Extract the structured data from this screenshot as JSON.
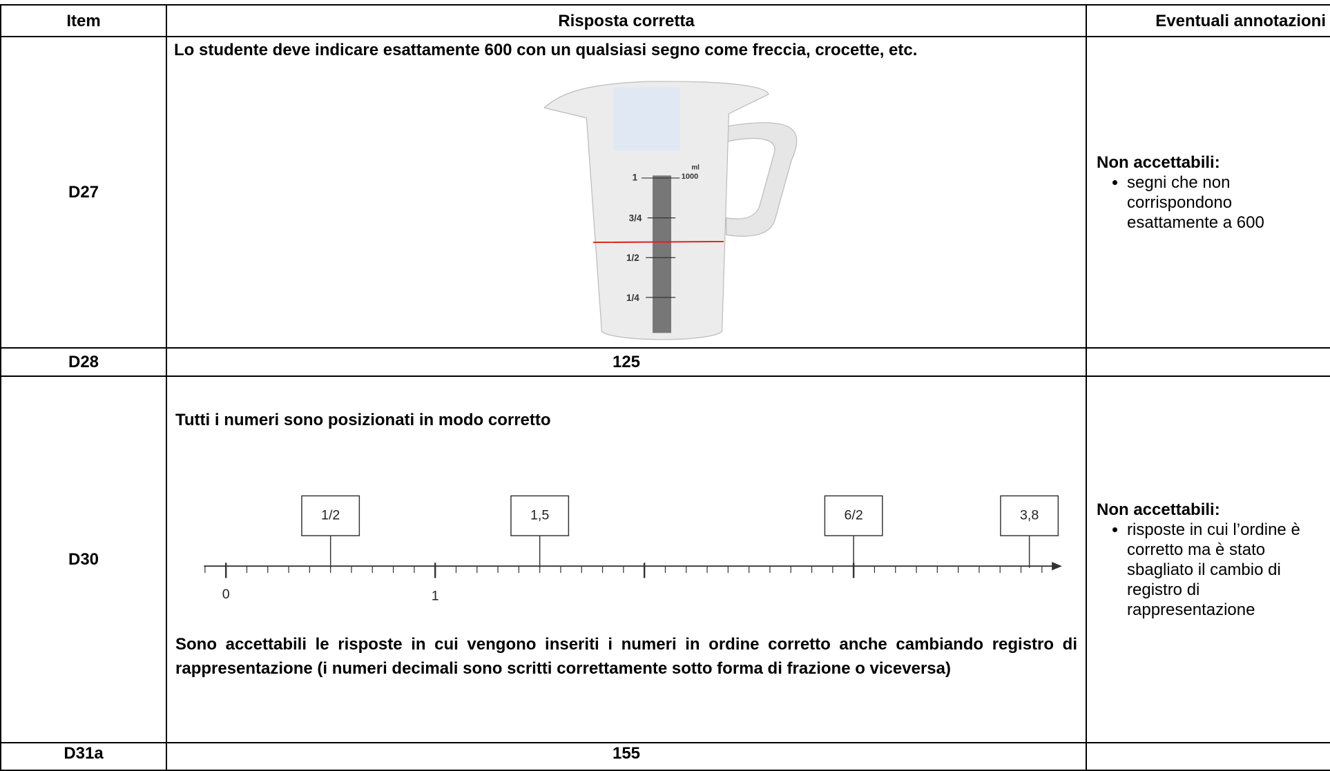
{
  "table": {
    "header": [
      "Item",
      "Risposta corretta",
      "Eventuali annotazioni"
    ],
    "rows": [
      {
        "item": "D27",
        "answer": {
          "text": "Lo studente deve indicare esattamente 600 con un qualsiasi segno come freccia, crocette, etc.",
          "figure": {
            "unit": "ml",
            "scale_labels": [
              "1000",
              "1",
              "3/4",
              "1/2",
              "1/4"
            ]
          }
        },
        "notes": {
          "heading": "Non accettabili:",
          "bullets": [
            "segni che non corrispondono esattamente a 600"
          ]
        }
      },
      {
        "item": "D28",
        "answer": {
          "text": "125"
        }
      },
      {
        "item": "D30",
        "answer": {
          "text": "Tutti i numeri sono posizionati in modo corretto",
          "figure": {
            "axis_labels": [
              "0",
              "1"
            ],
            "boxes": [
              "1/2",
              "1,5",
              "6/2",
              "3,8"
            ]
          },
          "note": "Sono accettabili le risposte in cui vengono inseriti i numeri in ordine corretto anche cambiando registro di rappresentazione (i numeri decimali sono scritti correttamente sotto forma di frazione o viceversa)"
        },
        "notes": {
          "heading": "Non accettabili:",
          "bullets": [
            "risposte in cui l’ordine è corretto ma è stato sbagliato il cambio di registro di rappresentazione"
          ]
        }
      },
      {
        "item": "D31a",
        "answer": {
          "text": "155"
        }
      }
    ]
  }
}
